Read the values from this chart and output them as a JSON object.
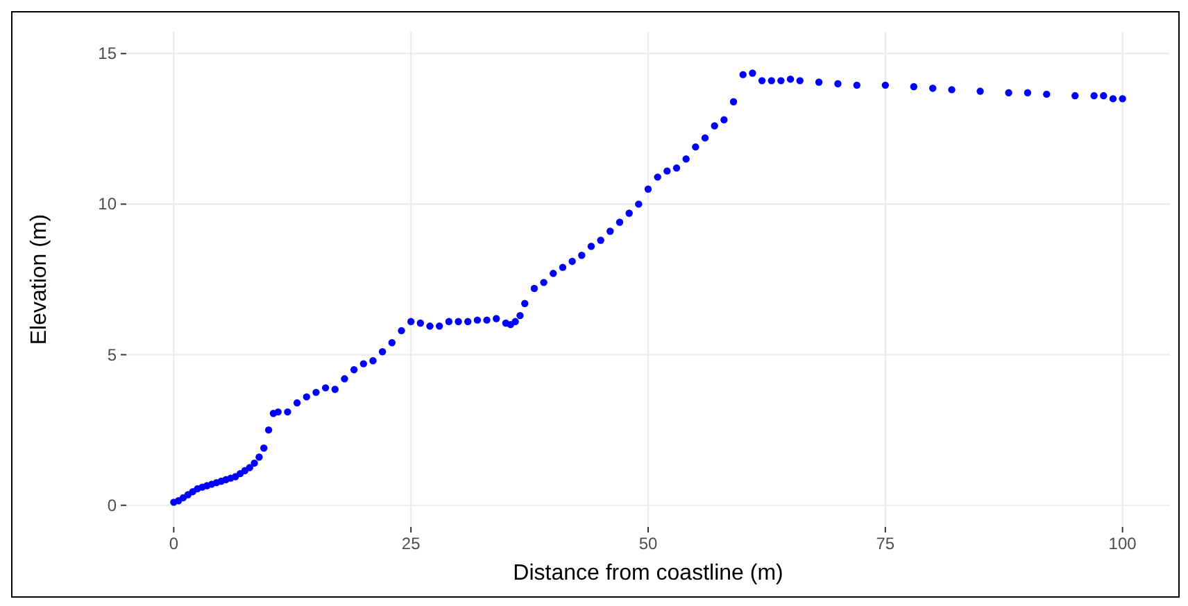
{
  "chart_data": {
    "type": "scatter",
    "xlabel": "Distance from coastline (m)",
    "ylabel": "Elevation (m)",
    "xlim": [
      -5,
      105
    ],
    "ylim": [
      -0.72,
      15.72
    ],
    "xticks": [
      0,
      25,
      50,
      75,
      100
    ],
    "yticks": [
      0,
      5,
      10,
      15
    ],
    "grid": true,
    "marker": "circle",
    "series": [
      {
        "color": "#0000ff",
        "x": [
          0,
          0.5,
          1,
          1.5,
          2,
          2.5,
          3,
          3.5,
          4,
          4.5,
          5,
          5.5,
          6,
          6.5,
          7,
          7.5,
          8,
          8.5,
          9,
          9.5,
          10,
          10.5,
          11,
          12,
          13,
          14,
          15,
          16,
          17,
          18,
          19,
          20,
          21,
          22,
          23,
          24,
          25,
          26,
          27,
          28,
          29,
          30,
          31,
          32,
          33,
          34,
          35,
          35.5,
          36,
          36.5,
          37,
          38,
          39,
          40,
          41,
          42,
          43,
          44,
          45,
          46,
          47,
          48,
          49,
          50,
          51,
          52,
          53,
          54,
          55,
          56,
          57,
          58,
          59,
          60,
          61,
          62,
          63,
          64,
          65,
          66,
          68,
          70,
          72,
          75,
          78,
          80,
          82,
          85,
          88,
          90,
          92,
          95,
          97,
          98,
          99,
          100
        ],
        "values": [
          0.1,
          0.15,
          0.25,
          0.35,
          0.45,
          0.55,
          0.6,
          0.65,
          0.7,
          0.75,
          0.8,
          0.85,
          0.9,
          0.95,
          1.05,
          1.15,
          1.25,
          1.4,
          1.6,
          1.9,
          2.5,
          3.05,
          3.1,
          3.1,
          3.4,
          3.6,
          3.75,
          3.9,
          3.85,
          4.2,
          4.5,
          4.7,
          4.8,
          5.1,
          5.4,
          5.8,
          6.1,
          6.05,
          5.95,
          5.95,
          6.1,
          6.1,
          6.1,
          6.15,
          6.15,
          6.2,
          6.05,
          6.0,
          6.1,
          6.3,
          6.7,
          7.2,
          7.4,
          7.7,
          7.9,
          8.1,
          8.3,
          8.6,
          8.8,
          9.1,
          9.4,
          9.7,
          10.0,
          10.5,
          10.9,
          11.1,
          11.2,
          11.5,
          11.9,
          12.2,
          12.6,
          12.8,
          13.4,
          14.3,
          14.35,
          14.1,
          14.1,
          14.1,
          14.15,
          14.1,
          14.05,
          14.0,
          13.95,
          13.95,
          13.9,
          13.85,
          13.8,
          13.75,
          13.7,
          13.7,
          13.65,
          13.6,
          13.6,
          13.6,
          13.5,
          13.5
        ]
      }
    ]
  }
}
